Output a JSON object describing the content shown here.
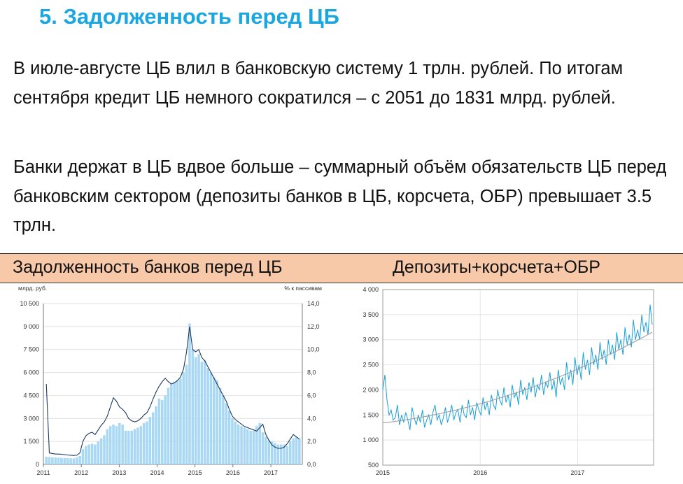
{
  "title": "5. Задолженность перед ЦБ",
  "paragraphs": [
    "В июле-августе ЦБ влил в банковскую систему 1 трлн. рублей. По итогам сентября кредит ЦБ немного сократился – с 2051 до 1831 млрд. рублей.",
    "Банки держат в ЦБ вдвое больше – суммарный объём обязательств ЦБ перед банковским сектором (депозиты банков в ЦБ, корсчета, ОБР) превышает 3.5 трлн."
  ],
  "band": {
    "left": "Задолженность банков перед ЦБ",
    "right": "Депозиты+корсчета+ОБР"
  },
  "colors": {
    "title": "#1aa7e0",
    "band": "#f8c9a8",
    "bars": "#a9d8f5",
    "line_dark": "#1e3a5f",
    "line_cyan": "#1aa0d8",
    "trend": "#999999"
  },
  "chart_data": [
    {
      "type": "bar",
      "ylabel_left": "млрд. руб.",
      "ylabel_right": "% к пассивам",
      "ylim": [
        0,
        10500
      ],
      "ylim_right": [
        0,
        14
      ],
      "yticks_left": [
        "0",
        "1 500",
        "3 000",
        "4 500",
        "6 000",
        "7 500",
        "9 000",
        "10 500"
      ],
      "yticks_right": [
        "0,0",
        "2,0",
        "4,0",
        "6,0",
        "8,0",
        "10,0",
        "12,0",
        "14,0"
      ],
      "xticks": [
        "2011",
        "2012",
        "2013",
        "2014",
        "2015",
        "2016",
        "2017"
      ],
      "x_start": 2011,
      "x_end": 2017.83,
      "bar_values": [
        500,
        480,
        460,
        450,
        440,
        430,
        420,
        410,
        400,
        390,
        450,
        550,
        1000,
        1200,
        1300,
        1350,
        1300,
        1500,
        1700,
        1900,
        2300,
        2500,
        2600,
        2500,
        2700,
        2600,
        2200,
        2200,
        2200,
        2300,
        2400,
        2500,
        2700,
        2800,
        3100,
        3400,
        3800,
        4300,
        4200,
        4500,
        5000,
        5300,
        5400,
        5500,
        5600,
        6000,
        6500,
        9200,
        7500,
        7000,
        7200,
        6700,
        6800,
        6300,
        6000,
        5700,
        5500,
        5000,
        4500,
        4000,
        3500,
        3000,
        2800,
        2600,
        2500,
        2400,
        2300,
        2200,
        2200,
        2500,
        2700,
        2100,
        1800,
        1600,
        1500,
        1400,
        1300,
        1300,
        1300,
        1200,
        1500,
        1700,
        1800,
        1700
      ],
      "line_values": [
        7.0,
        1.0,
        0.95,
        0.9,
        0.9,
        0.88,
        0.85,
        0.82,
        0.8,
        0.78,
        0.8,
        1.0,
        2.0,
        2.5,
        2.7,
        2.8,
        2.6,
        3.0,
        3.4,
        3.7,
        4.2,
        5.0,
        5.8,
        5.5,
        5.0,
        4.8,
        4.5,
        4.0,
        3.8,
        3.7,
        3.8,
        4.0,
        4.3,
        4.5,
        5.0,
        5.7,
        6.3,
        6.8,
        7.2,
        7.5,
        7.2,
        7.0,
        7.1,
        7.3,
        7.6,
        8.3,
        9.8,
        12.0,
        10.0,
        9.8,
        10.0,
        9.3,
        9.0,
        8.5,
        8.0,
        7.5,
        7.0,
        6.5,
        6.0,
        5.5,
        4.8,
        4.2,
        3.9,
        3.7,
        3.5,
        3.3,
        3.2,
        3.1,
        3.0,
        2.9,
        3.2,
        3.5,
        2.6,
        2.1,
        1.7,
        1.5,
        1.4,
        1.4,
        1.5,
        1.8,
        2.2,
        2.6,
        2.4,
        2.2
      ]
    },
    {
      "type": "line",
      "ylim": [
        500,
        4000
      ],
      "yticks": [
        "500",
        "1 000",
        "1 500",
        "2 000",
        "2 500",
        "3 000",
        "3 500",
        "4 000"
      ],
      "xticks": [
        "2015",
        "2016",
        "2017"
      ],
      "x_start": 2015,
      "x_end": 2017.78,
      "trend_start": 1340,
      "trend_end": 3150,
      "values": [
        2000,
        2300,
        1800,
        1500,
        1600,
        1400,
        1450,
        1700,
        1300,
        1500,
        1350,
        1550,
        1400,
        1200,
        1650,
        1450,
        1300,
        1500,
        1350,
        1600,
        1250,
        1400,
        1500,
        1300,
        1550,
        1700,
        1400,
        1500,
        1300,
        1450,
        1650,
        1350,
        1500,
        1700,
        1400,
        1550,
        1600,
        1350,
        1700,
        1500,
        1450,
        1800,
        1500,
        1650,
        1400,
        1750,
        1600,
        1500,
        1850,
        1600,
        1750,
        1500,
        1900,
        1700,
        1600,
        2000,
        1800,
        1700,
        2050,
        1750,
        1900,
        1650,
        2100,
        1850,
        1950,
        1700,
        2200,
        1900,
        2050,
        1800,
        2150,
        1950,
        2250,
        1850,
        2100,
        2000,
        2300,
        1900,
        2150,
        2050,
        2350,
        2000,
        2200,
        1850,
        2400,
        2100,
        2250,
        2000,
        2550,
        2200,
        2400,
        2100,
        2650,
        2300,
        2500,
        2200,
        2750,
        2400,
        2600,
        2300,
        2850,
        2500,
        2700,
        2400,
        2950,
        2600,
        2800,
        2500,
        3000,
        2700,
        2900,
        2600,
        3150,
        2800,
        3000,
        2700,
        3250,
        2900,
        3100,
        2850,
        3400,
        3000,
        3200,
        3000,
        3500,
        3150,
        3350,
        3100,
        3700,
        3300
      ]
    }
  ]
}
